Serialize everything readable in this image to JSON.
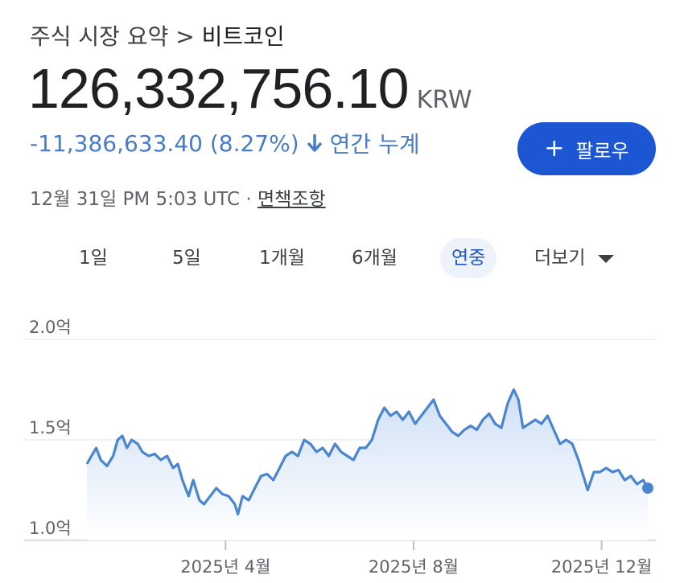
{
  "header": {
    "breadcrumb_root": "주식 시장 요약",
    "breadcrumb_sep": ">",
    "breadcrumb_current": "비트코인"
  },
  "quote": {
    "price": "126,332,756.10",
    "currency": "KRW",
    "change": "-11,386,633.40 (8.27%)",
    "period_label": "연간 누계",
    "timestamp": "12월 31일 PM 5:03 UTC",
    "separator": "·",
    "disclaimer": "면책조항"
  },
  "follow_button": {
    "label": "팔로우",
    "icon": "plus-icon"
  },
  "tabs": [
    {
      "label": "1일",
      "active": false
    },
    {
      "label": "5일",
      "active": false
    },
    {
      "label": "1개월",
      "active": false
    },
    {
      "label": "6개월",
      "active": false
    },
    {
      "label": "연중",
      "active": true
    },
    {
      "label": "더보기",
      "active": false,
      "icon": "caret-down-icon"
    }
  ],
  "colors": {
    "line": "#4a86d0",
    "fill_top": "#cfe0f5",
    "fill_bottom": "#ffffff",
    "accent": "#1d56d2",
    "negative": "#4a7cc6"
  },
  "chart_data": {
    "type": "area",
    "unit": "억",
    "ylim": [
      1.0,
      2.0
    ],
    "yticks": [
      {
        "value": 2.0,
        "label": "2.0억"
      },
      {
        "value": 1.5,
        "label": "1.5억"
      },
      {
        "value": 1.0,
        "label": "1.0억"
      }
    ],
    "xticks": [
      {
        "date": "2025-04-01",
        "label": "2025년 4월"
      },
      {
        "date": "2025-08-01",
        "label": "2025년 8월"
      },
      {
        "date": "2025-12-01",
        "label": "2025년 12월"
      }
    ],
    "grid": true,
    "series": [
      {
        "points": [
          [
            "2025-01-01",
            1.38
          ],
          [
            "2025-01-04",
            1.42
          ],
          [
            "2025-01-07",
            1.46
          ],
          [
            "2025-01-10",
            1.4
          ],
          [
            "2025-01-14",
            1.37
          ],
          [
            "2025-01-18",
            1.42
          ],
          [
            "2025-01-21",
            1.5
          ],
          [
            "2025-01-24",
            1.52
          ],
          [
            "2025-01-27",
            1.46
          ],
          [
            "2025-01-30",
            1.5
          ],
          [
            "2025-02-03",
            1.48
          ],
          [
            "2025-02-06",
            1.44
          ],
          [
            "2025-02-10",
            1.42
          ],
          [
            "2025-02-14",
            1.43
          ],
          [
            "2025-02-18",
            1.4
          ],
          [
            "2025-02-22",
            1.42
          ],
          [
            "2025-02-26",
            1.36
          ],
          [
            "2025-03-01",
            1.38
          ],
          [
            "2025-03-04",
            1.3
          ],
          [
            "2025-03-08",
            1.22
          ],
          [
            "2025-03-11",
            1.3
          ],
          [
            "2025-03-15",
            1.2
          ],
          [
            "2025-03-18",
            1.18
          ],
          [
            "2025-03-22",
            1.22
          ],
          [
            "2025-03-26",
            1.26
          ],
          [
            "2025-03-30",
            1.23
          ],
          [
            "2025-04-03",
            1.22
          ],
          [
            "2025-04-07",
            1.18
          ],
          [
            "2025-04-09",
            1.13
          ],
          [
            "2025-04-12",
            1.22
          ],
          [
            "2025-04-16",
            1.2
          ],
          [
            "2025-04-20",
            1.26
          ],
          [
            "2025-04-24",
            1.32
          ],
          [
            "2025-04-28",
            1.33
          ],
          [
            "2025-05-02",
            1.3
          ],
          [
            "2025-05-06",
            1.36
          ],
          [
            "2025-05-10",
            1.42
          ],
          [
            "2025-05-14",
            1.44
          ],
          [
            "2025-05-18",
            1.42
          ],
          [
            "2025-05-22",
            1.5
          ],
          [
            "2025-05-26",
            1.48
          ],
          [
            "2025-05-30",
            1.44
          ],
          [
            "2025-06-03",
            1.46
          ],
          [
            "2025-06-07",
            1.42
          ],
          [
            "2025-06-11",
            1.48
          ],
          [
            "2025-06-15",
            1.44
          ],
          [
            "2025-06-19",
            1.42
          ],
          [
            "2025-06-23",
            1.4
          ],
          [
            "2025-06-27",
            1.46
          ],
          [
            "2025-07-01",
            1.46
          ],
          [
            "2025-07-05",
            1.5
          ],
          [
            "2025-07-09",
            1.6
          ],
          [
            "2025-07-13",
            1.66
          ],
          [
            "2025-07-17",
            1.62
          ],
          [
            "2025-07-21",
            1.64
          ],
          [
            "2025-07-25",
            1.6
          ],
          [
            "2025-07-29",
            1.64
          ],
          [
            "2025-08-02",
            1.58
          ],
          [
            "2025-08-06",
            1.62
          ],
          [
            "2025-08-10",
            1.66
          ],
          [
            "2025-08-14",
            1.7
          ],
          [
            "2025-08-18",
            1.62
          ],
          [
            "2025-08-22",
            1.58
          ],
          [
            "2025-08-26",
            1.54
          ],
          [
            "2025-08-30",
            1.52
          ],
          [
            "2025-09-03",
            1.55
          ],
          [
            "2025-09-07",
            1.57
          ],
          [
            "2025-09-11",
            1.55
          ],
          [
            "2025-09-15",
            1.6
          ],
          [
            "2025-09-19",
            1.63
          ],
          [
            "2025-09-23",
            1.58
          ],
          [
            "2025-09-27",
            1.56
          ],
          [
            "2025-10-01",
            1.68
          ],
          [
            "2025-10-05",
            1.75
          ],
          [
            "2025-10-08",
            1.7
          ],
          [
            "2025-10-11",
            1.56
          ],
          [
            "2025-10-15",
            1.58
          ],
          [
            "2025-10-19",
            1.6
          ],
          [
            "2025-10-23",
            1.58
          ],
          [
            "2025-10-27",
            1.62
          ],
          [
            "2025-10-31",
            1.55
          ],
          [
            "2025-11-04",
            1.48
          ],
          [
            "2025-11-08",
            1.5
          ],
          [
            "2025-11-12",
            1.48
          ],
          [
            "2025-11-16",
            1.4
          ],
          [
            "2025-11-20",
            1.3
          ],
          [
            "2025-11-22",
            1.25
          ],
          [
            "2025-11-26",
            1.34
          ],
          [
            "2025-11-30",
            1.34
          ],
          [
            "2025-12-04",
            1.36
          ],
          [
            "2025-12-08",
            1.34
          ],
          [
            "2025-12-12",
            1.35
          ],
          [
            "2025-12-16",
            1.3
          ],
          [
            "2025-12-20",
            1.32
          ],
          [
            "2025-12-24",
            1.28
          ],
          [
            "2025-12-28",
            1.3
          ],
          [
            "2025-12-31",
            1.26
          ]
        ]
      }
    ]
  }
}
